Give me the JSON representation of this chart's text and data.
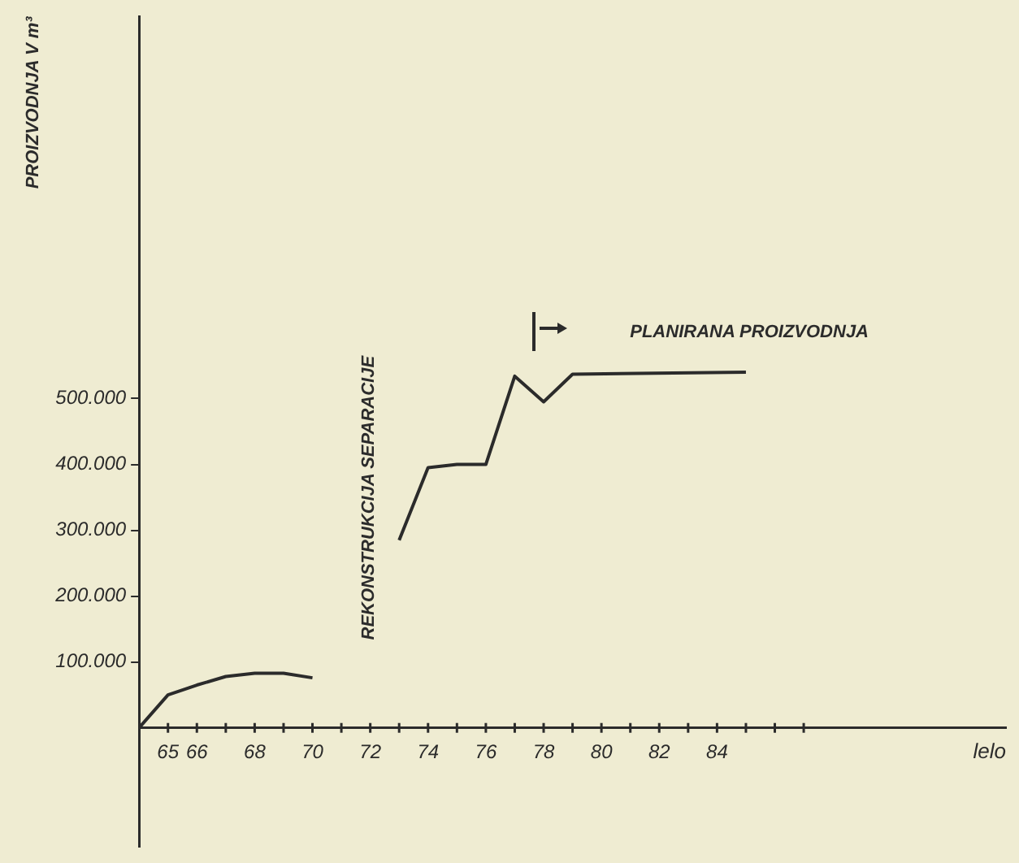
{
  "chart_data": {
    "type": "line",
    "ylabel": "PROIZVODNJA V m³",
    "xlabel": "lelo",
    "xlim": [
      64,
      94
    ],
    "ylim": [
      -180000,
      1080000
    ],
    "xticks": [
      65,
      66,
      {
        "value": 67,
        "label": null
      },
      68,
      {
        "value": 69,
        "label": null
      },
      70,
      {
        "value": 71,
        "label": null
      },
      72,
      {
        "value": 73,
        "label": null
      },
      74,
      {
        "value": 75,
        "label": null
      },
      76,
      {
        "value": 77,
        "label": null
      },
      78,
      {
        "value": 79,
        "label": null
      },
      80,
      {
        "value": 81,
        "label": null
      },
      82,
      {
        "value": 83,
        "label": null
      },
      84,
      {
        "value": 85,
        "label": null
      },
      {
        "value": 86,
        "label": null
      },
      {
        "value": 87,
        "label": null
      }
    ],
    "yticks": [
      {
        "value": 100000,
        "label": "100.000"
      },
      {
        "value": 200000,
        "label": "200.000"
      },
      {
        "value": 300000,
        "label": "300.000"
      },
      {
        "value": 400000,
        "label": "400.000"
      },
      {
        "value": 500000,
        "label": "500.000"
      }
    ],
    "series": [
      {
        "color": "#2b2b2b",
        "x": [
          64,
          65,
          66,
          67,
          68,
          69,
          70
        ],
        "values": [
          0,
          50000,
          65000,
          78000,
          83000,
          83000,
          76000
        ]
      },
      {
        "color": "#2b2b2b",
        "x": [
          73,
          74,
          75,
          76,
          77,
          78,
          79,
          85
        ],
        "values": [
          285000,
          395000,
          400000,
          400000,
          534000,
          495000,
          537000,
          540000
        ]
      }
    ],
    "annotations": [
      "REKONSTRUKCIJA SEPARACIJE",
      "PLANIRANA PROIZVODNJA"
    ],
    "grid": false,
    "legend": false,
    "marker": "none",
    "line_style": "solid"
  }
}
